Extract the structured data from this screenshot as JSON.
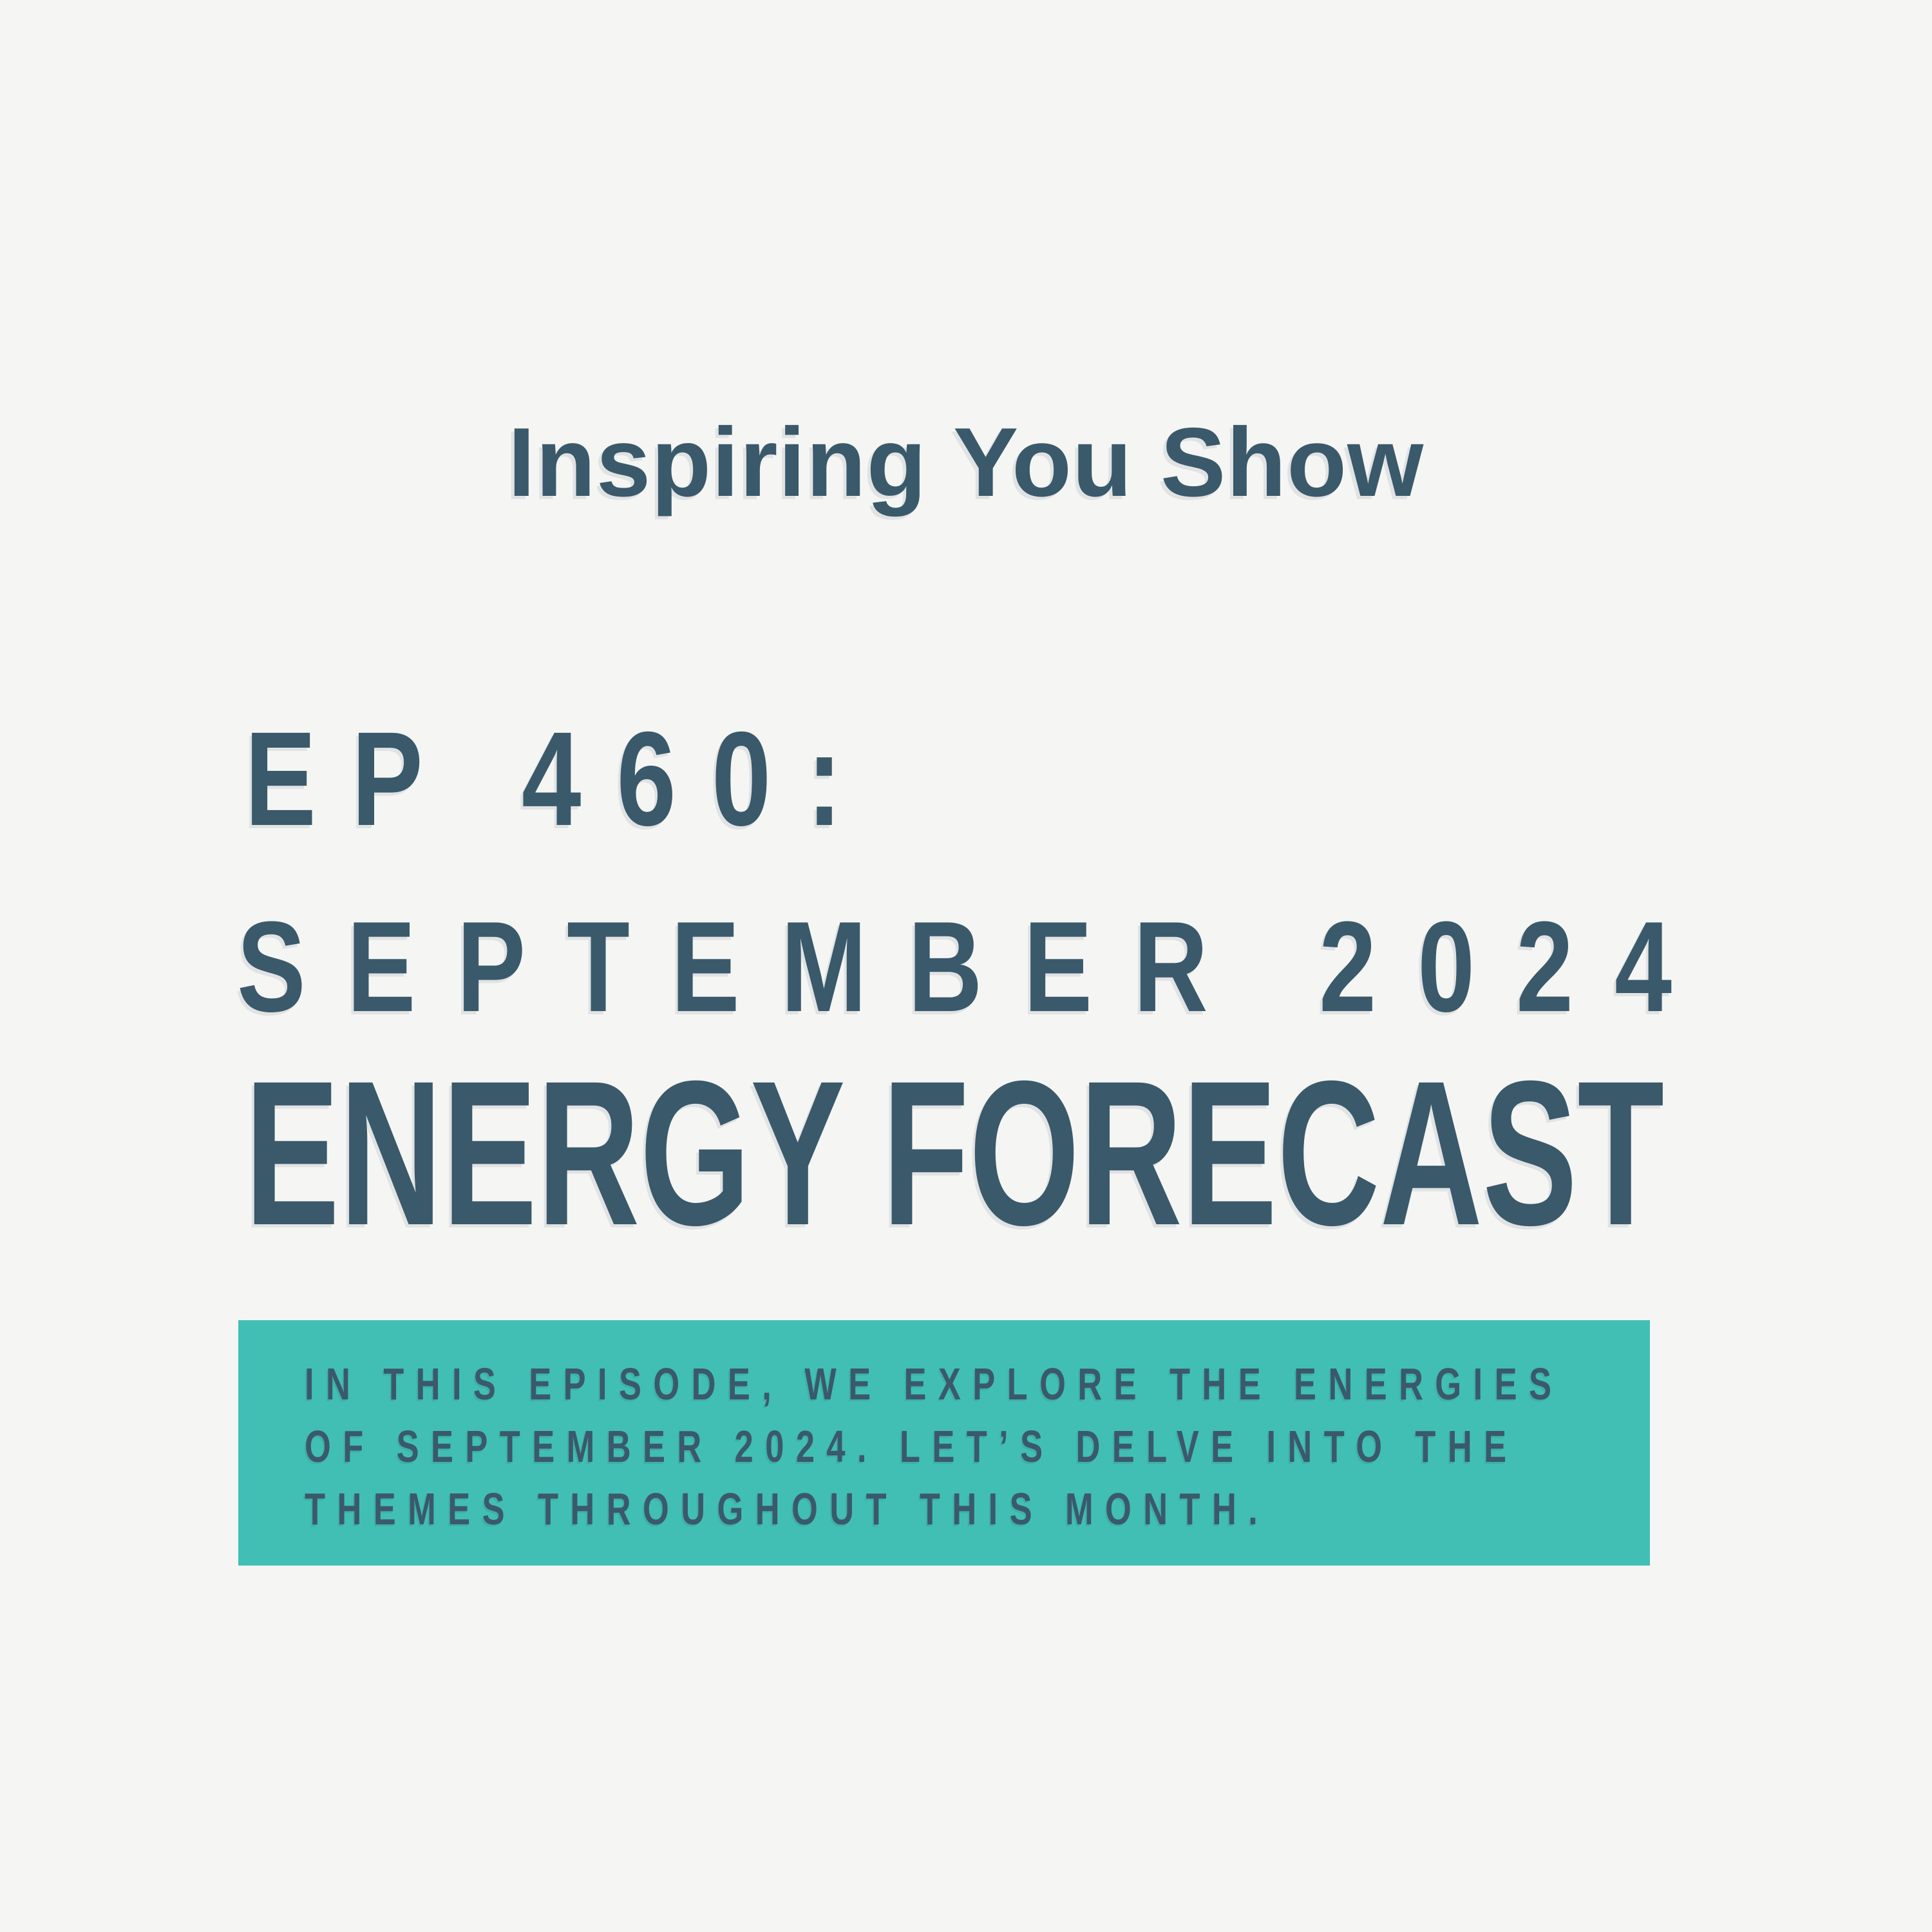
{
  "canvas": {
    "background_color": "#F5F5F4",
    "text_color": "#3A5A6B",
    "accent_color": "#41BFB4"
  },
  "header": {
    "show_title": "Inspiring You Show"
  },
  "episode": {
    "episode_label": "EP 460:",
    "date_label": "SEPTEMBER 2024",
    "title": "ENERGY FORECAST"
  },
  "description": {
    "lines": [
      "IN THIS EPISODE, WE EXPLORE THE ENERGIES",
      "OF SEPTEMBER 2024. LET’S DELVE INTO THE",
      "THEMES THROUGHOUT THIS MONTH."
    ]
  }
}
